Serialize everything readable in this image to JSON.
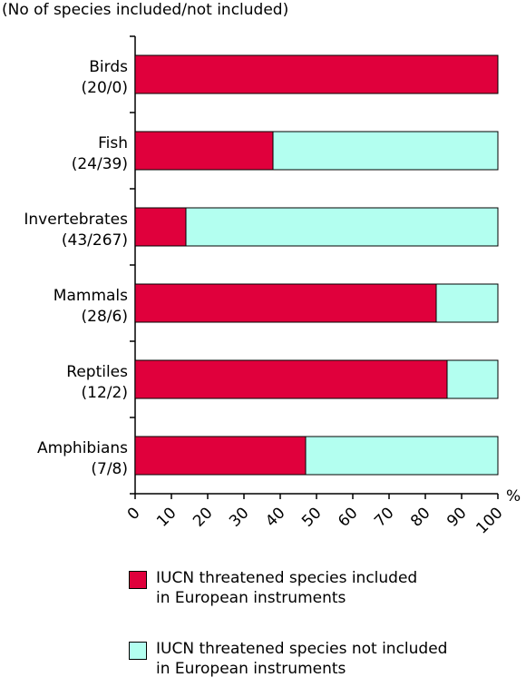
{
  "chart_data": {
    "type": "bar",
    "orientation": "horizontal",
    "stacked": true,
    "subtitle": "(No of species included/not included)",
    "unit": "%",
    "xlim": [
      0,
      100
    ],
    "xticks": [
      0,
      10,
      20,
      30,
      40,
      50,
      60,
      70,
      80,
      90,
      100
    ],
    "grid": false,
    "legend_placement": "bottom",
    "categories": [
      {
        "name": "Birds",
        "counts": "(20/0)"
      },
      {
        "name": "Fish",
        "counts": "(24/39)"
      },
      {
        "name": "Invertebrates",
        "counts": "(43/267)"
      },
      {
        "name": "Mammals",
        "counts": "(28/6)"
      },
      {
        "name": "Reptiles",
        "counts": "(12/2)"
      },
      {
        "name": "Amphibians",
        "counts": "(7/8)"
      }
    ],
    "series": [
      {
        "name": "IUCN threatened species included in European instruments",
        "color": "#e0003c",
        "values": [
          100,
          38,
          14,
          83,
          86,
          47
        ]
      },
      {
        "name": "IUCN threatened species not included in European instruments",
        "color": "#b3fff0",
        "values": [
          0,
          62,
          86,
          17,
          14,
          53
        ]
      }
    ]
  },
  "legend": {
    "items": [
      {
        "line1": "IUCN threatened species included",
        "line2": "in European instruments",
        "color": "#e0003c"
      },
      {
        "line1": "IUCN threatened species not included",
        "line2": "in European instruments",
        "color": "#b3fff0"
      }
    ]
  }
}
